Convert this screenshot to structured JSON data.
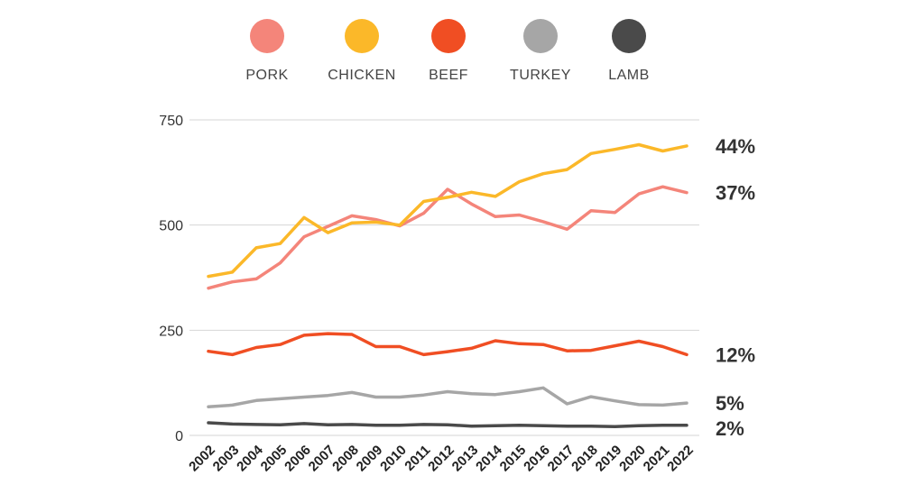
{
  "chart_data": {
    "type": "line",
    "x": [
      "2002",
      "2003",
      "2004",
      "2005",
      "2006",
      "2007",
      "2008",
      "2009",
      "2010",
      "2011",
      "2012",
      "2013",
      "2014",
      "2015",
      "2016",
      "2017",
      "2018",
      "2019",
      "2020",
      "2021",
      "2022"
    ],
    "ylim": [
      0,
      750
    ],
    "yticks": [
      "0",
      "250",
      "500",
      "750"
    ],
    "grid": "horizontal",
    "legend_position": "top",
    "series": [
      {
        "name": "PORK",
        "color": "#f4857a",
        "end_label": "37%",
        "values": [
          350,
          365,
          372,
          410,
          472,
          497,
          522,
          513,
          498,
          528,
          585,
          550,
          520,
          524,
          508,
          490,
          534,
          530,
          574,
          591,
          577
        ]
      },
      {
        "name": "CHICKEN",
        "color": "#fbb829",
        "end_label": "44%",
        "values": [
          378,
          388,
          446,
          456,
          518,
          482,
          505,
          507,
          500,
          556,
          566,
          578,
          568,
          603,
          622,
          632,
          670,
          680,
          691,
          676,
          688
        ]
      },
      {
        "name": "BEEF",
        "color": "#f04e23",
        "end_label": "12%",
        "values": [
          200,
          192,
          209,
          216,
          238,
          242,
          240,
          211,
          211,
          192,
          199,
          207,
          225,
          218,
          216,
          201,
          202,
          213,
          224,
          211,
          192
        ]
      },
      {
        "name": "TURKEY",
        "color": "#a6a6a6",
        "end_label": "5%",
        "values": [
          68,
          72,
          83,
          87,
          91,
          95,
          102,
          91,
          91,
          96,
          104,
          99,
          97,
          104,
          113,
          75,
          92,
          82,
          73,
          72,
          77
        ]
      },
      {
        "name": "LAMB",
        "color": "#4a4a4a",
        "end_label": "2%",
        "values": [
          30,
          27,
          26,
          25,
          28,
          25,
          26,
          24,
          24,
          26,
          25,
          22,
          23,
          24,
          23,
          22,
          22,
          21,
          23,
          24,
          24
        ]
      }
    ]
  }
}
